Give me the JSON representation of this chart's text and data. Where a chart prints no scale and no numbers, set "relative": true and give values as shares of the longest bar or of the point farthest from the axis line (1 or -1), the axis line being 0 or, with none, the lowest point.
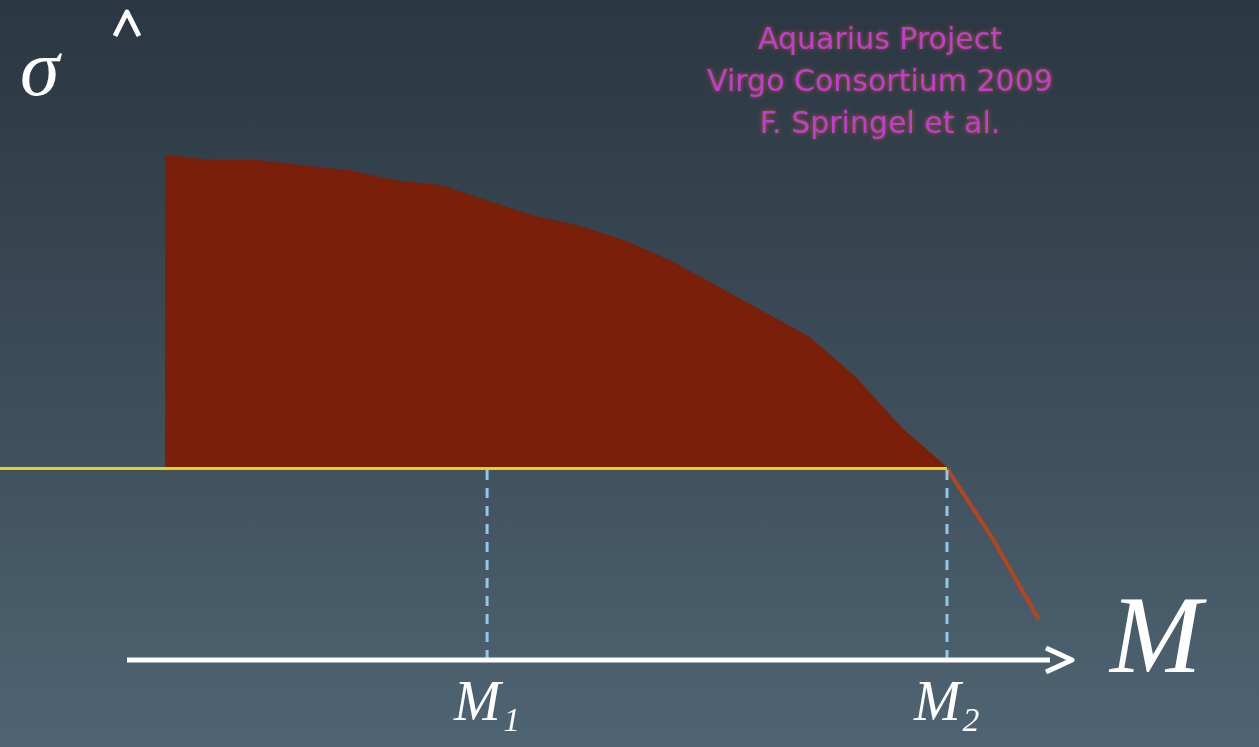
{
  "chart_data": {
    "type": "area",
    "relative": true,
    "xlabel": "M",
    "ylabel": "σ",
    "annotations": [
      "Aquarius Project\nVirgo Consortium 2009\nF. Springel et al."
    ],
    "categories": [
      null,
      null,
      null,
      null,
      null,
      null,
      null,
      "M₁",
      null,
      null,
      null,
      null,
      null,
      null,
      null,
      null,
      null,
      "M₂",
      null,
      null
    ],
    "series": [
      {
        "color": "#7a1f0a",
        "values": [
          1,
          0.99,
          0.99,
          0.98,
          0.97,
          0.95,
          0.94,
          0.91,
          0.88,
          0.86,
          0.83,
          0.79,
          0.74,
          0.69,
          0.64,
          0.56,
          0.46,
          0.38,
          null,
          null
        ]
      },
      {
        "type": "line",
        "color": "#b5461c",
        "values": [
          null,
          null,
          null,
          null,
          null,
          null,
          null,
          null,
          null,
          null,
          null,
          null,
          null,
          null,
          null,
          null,
          null,
          0.38,
          0.24,
          0.08
        ]
      }
    ],
    "ref_lines": [
      {
        "axis": "y",
        "value": 0.38,
        "color": "#e8d020",
        "line_style": "solid"
      },
      {
        "axis": "x",
        "value": "M₁",
        "color": "#8fc8e8",
        "line_style": "dashed"
      },
      {
        "axis": "x",
        "value": "M₂",
        "color": "#8fc8e8",
        "line_style": "dashed"
      }
    ]
  }
}
